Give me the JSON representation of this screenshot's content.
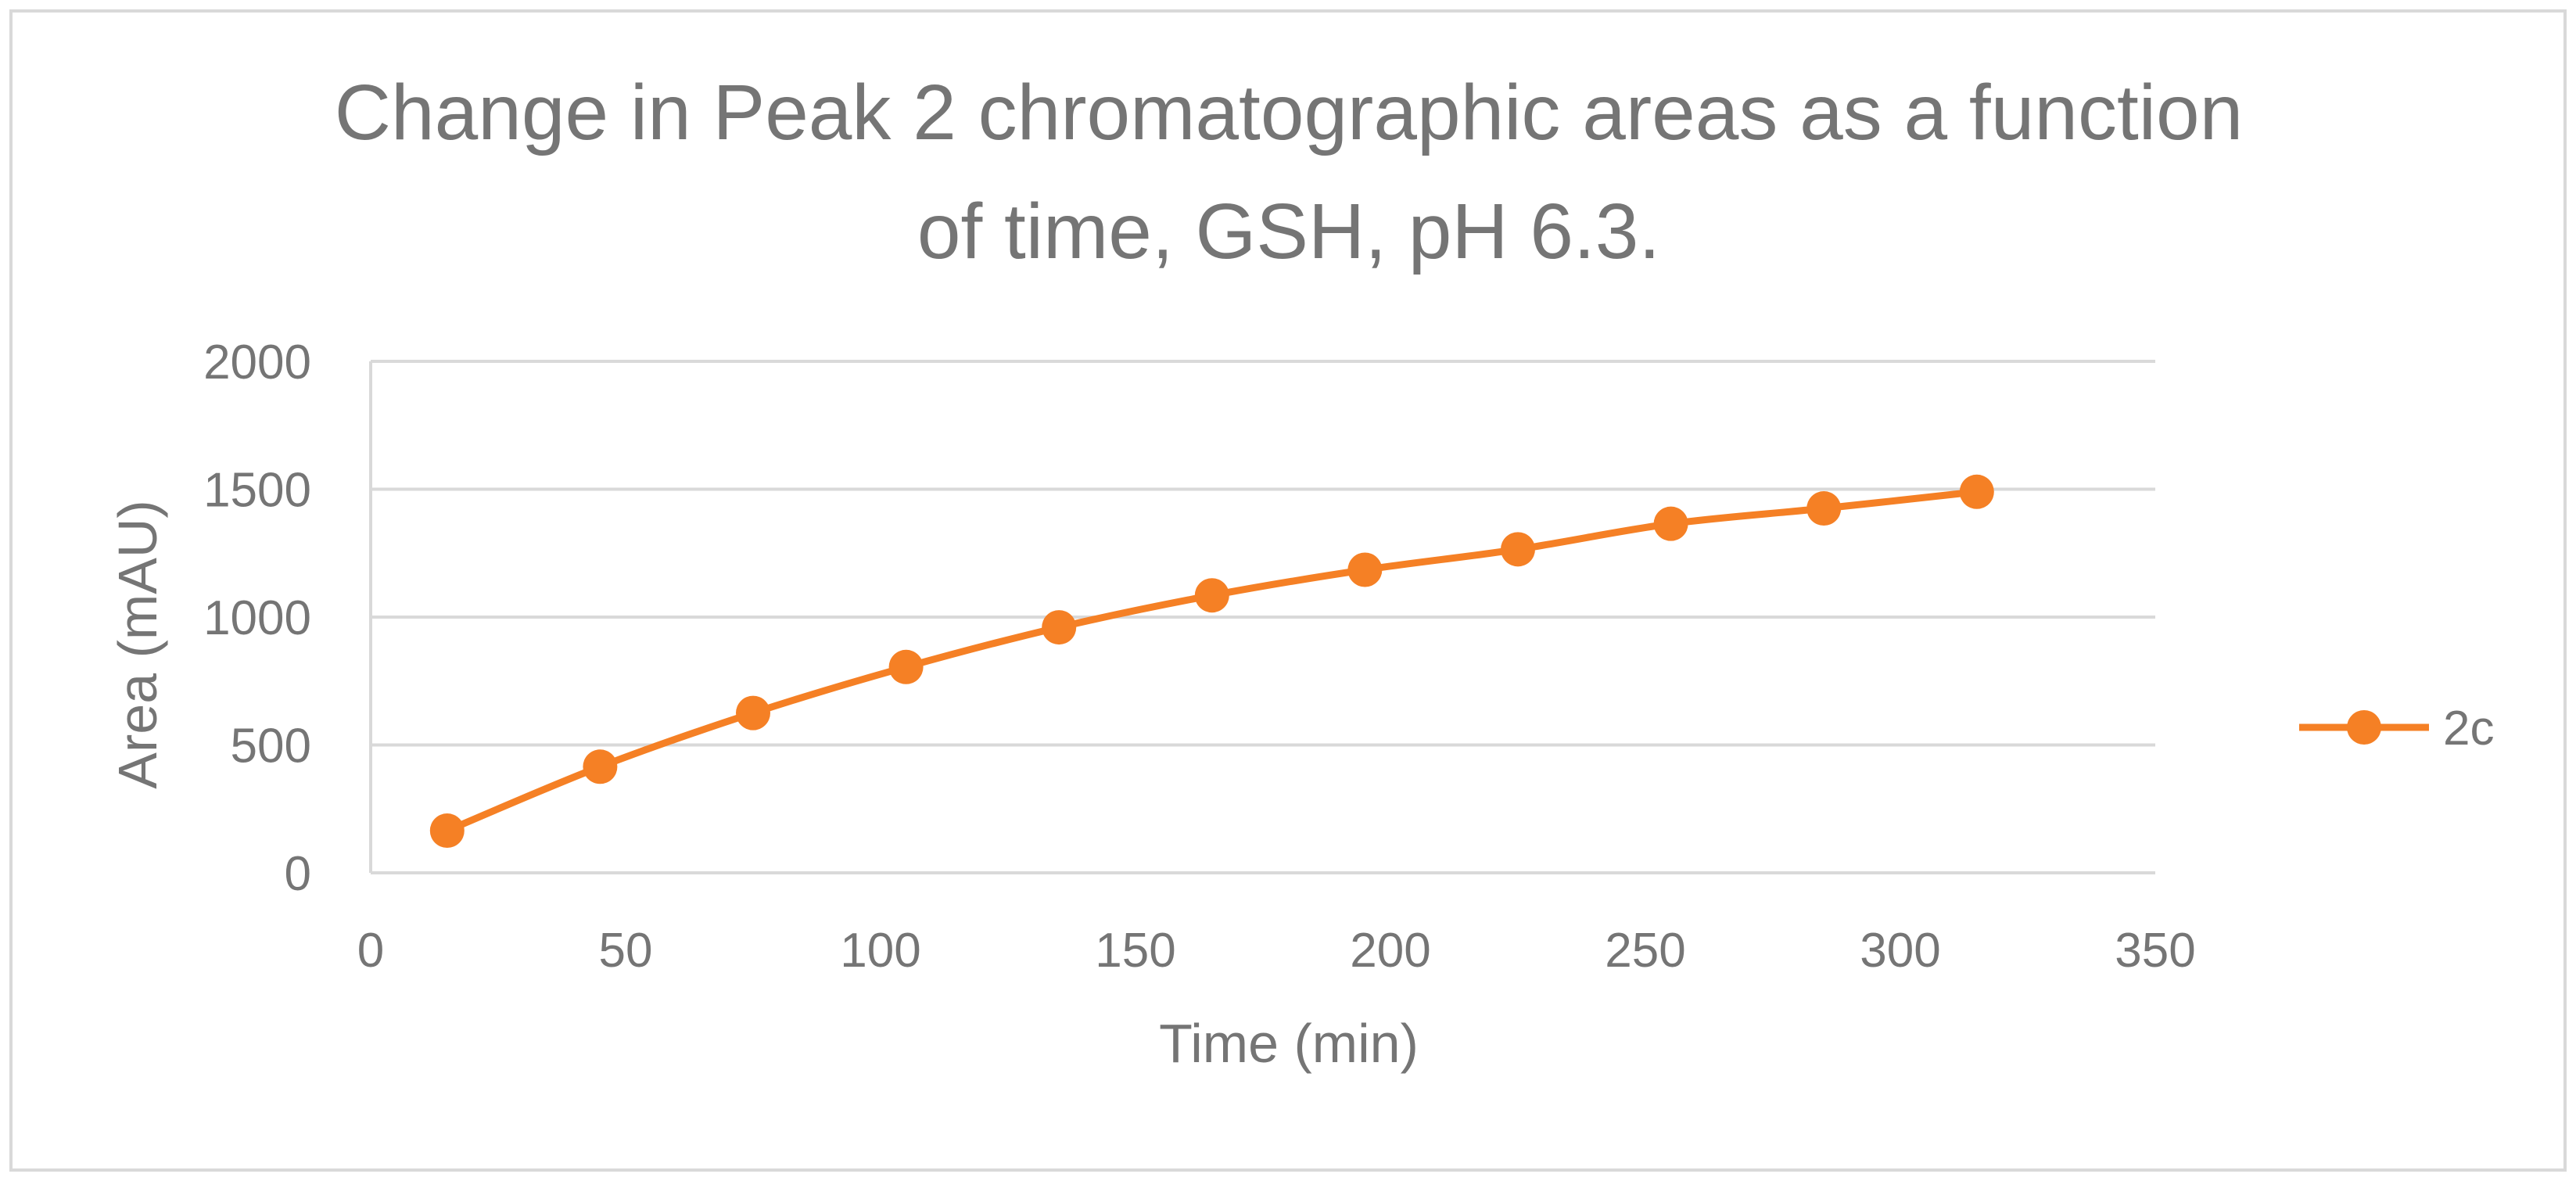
{
  "chart_data": {
    "type": "line",
    "title": "Change in Peak 2 chromatographic areas as a function of time, GSH, pH 6.3.",
    "title_lines": [
      "Change in Peak 2 chromatographic areas as a function",
      "of time, GSH, pH 6.3."
    ],
    "xlabel": "Time (min)",
    "ylabel": "Area (mAU)",
    "xlim": [
      0,
      350
    ],
    "ylim": [
      0,
      2000
    ],
    "x_ticks": [
      0,
      50,
      100,
      150,
      200,
      250,
      300,
      350
    ],
    "y_ticks": [
      0,
      500,
      1000,
      1500,
      2000
    ],
    "x_tick_labels": [
      "0",
      "50",
      "100",
      "150",
      "200",
      "250",
      "300",
      "350"
    ],
    "y_tick_labels": [
      "0",
      "500",
      "1000",
      "1500",
      "2000"
    ],
    "grid": "horizontal",
    "legend_position": "right",
    "smoothed": true,
    "series": [
      {
        "name": "2c",
        "color": "#F58025",
        "x": [
          15,
          45,
          75,
          105,
          135,
          165,
          195,
          225,
          255,
          285,
          315
        ],
        "y": [
          165,
          415,
          625,
          805,
          960,
          1085,
          1185,
          1265,
          1365,
          1425,
          1490
        ]
      }
    ]
  },
  "colors": {
    "text": "#757575",
    "grid": "#d9d9d9",
    "border": "#d9d9d9"
  }
}
